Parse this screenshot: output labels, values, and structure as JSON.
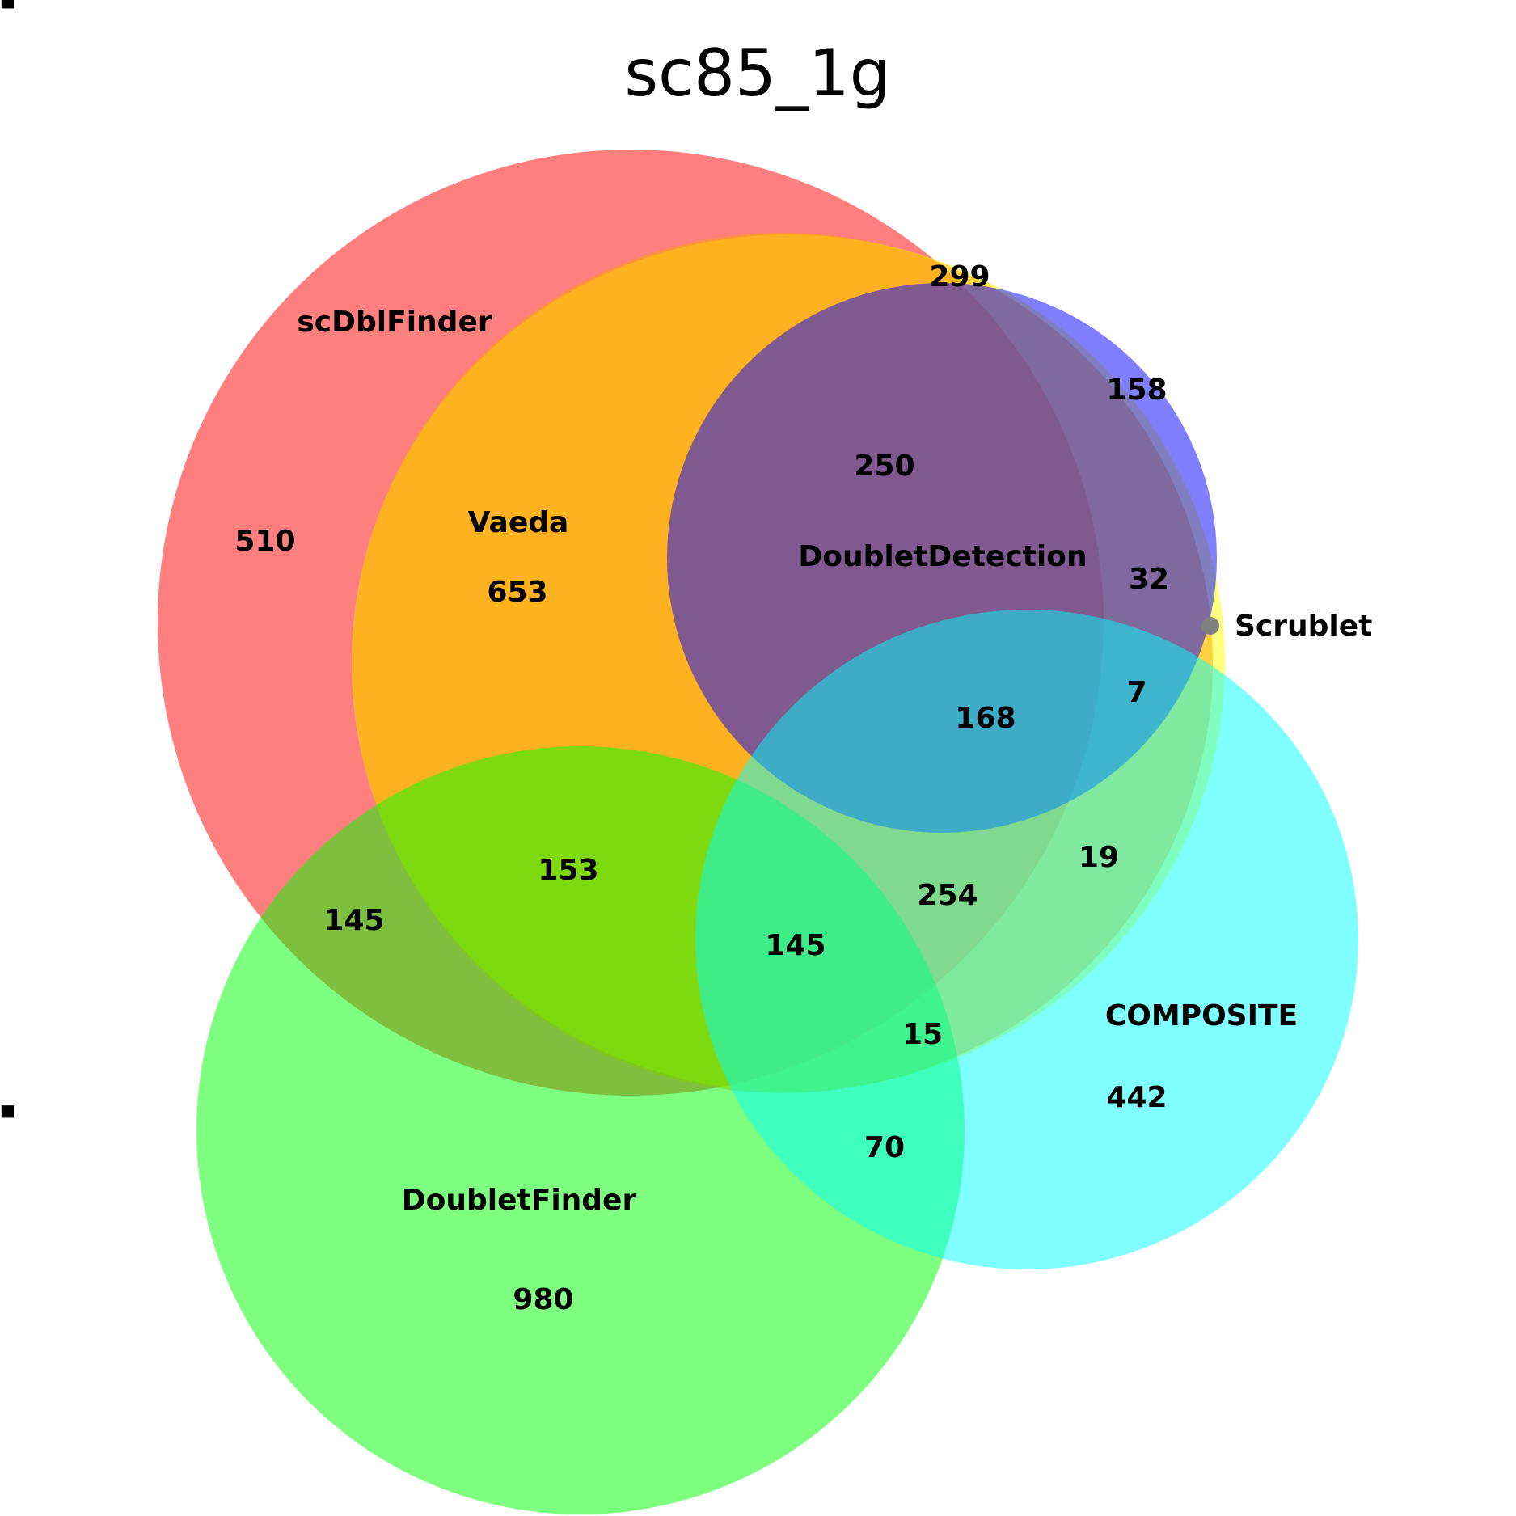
{
  "title": "sc85_1g",
  "sets": [
    {
      "key": "scDblFinder",
      "label": "scDblFinder",
      "color": "#ff0000"
    },
    {
      "key": "vaeda",
      "label": "Vaeda",
      "color": "#ff8c00"
    },
    {
      "key": "doubletdetection",
      "label": "DoubletDetection",
      "color": "#0000ff"
    },
    {
      "key": "scrublet",
      "label": "Scrublet",
      "color": "#ffff00"
    },
    {
      "key": "doubletfinder",
      "label": "DoubletFinder",
      "color": "#00ff00"
    },
    {
      "key": "composite",
      "label": "COMPOSITE",
      "color": "#00ffff"
    }
  ],
  "regions": [
    {
      "key": "r299",
      "value": "299"
    },
    {
      "key": "r158",
      "value": "158"
    },
    {
      "key": "r250",
      "value": "250"
    },
    {
      "key": "r510",
      "value": "510"
    },
    {
      "key": "r653",
      "value": "653"
    },
    {
      "key": "r32",
      "value": "32"
    },
    {
      "key": "r7",
      "value": "7"
    },
    {
      "key": "r168",
      "value": "168"
    },
    {
      "key": "r19",
      "value": "19"
    },
    {
      "key": "r153",
      "value": "153"
    },
    {
      "key": "r254",
      "value": "254"
    },
    {
      "key": "r145a",
      "value": "145"
    },
    {
      "key": "r145b",
      "value": "145"
    },
    {
      "key": "r15",
      "value": "15"
    },
    {
      "key": "r442",
      "value": "442"
    },
    {
      "key": "r70",
      "value": "70"
    },
    {
      "key": "r980",
      "value": "980"
    }
  ]
}
